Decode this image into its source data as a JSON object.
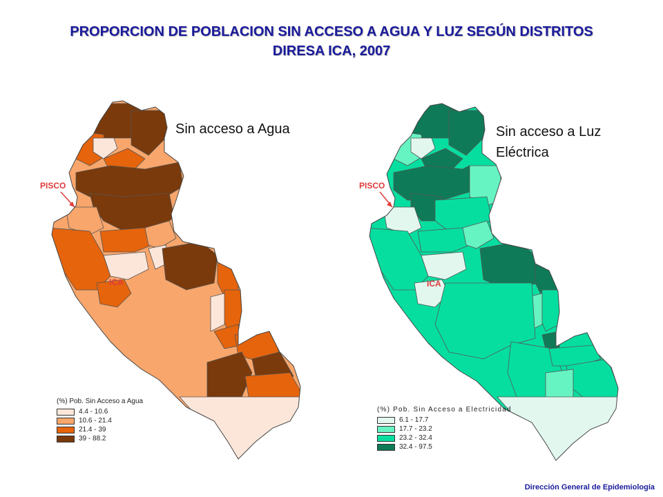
{
  "title": {
    "line1": "PROPORCION DE POBLACION SIN ACCESO A AGUA Y LUZ SEGÚN DISTRITOS",
    "line2": "DIRESA ICA, 2007"
  },
  "maps": {
    "water": {
      "label": "Sin acceso a Agua",
      "city_pisco": "PISCO",
      "city_ica": "ICA",
      "legend": {
        "title": "(%) Pob. Sin Acceso a Agua",
        "classes": [
          {
            "range": "4.4 - 10.6",
            "color": "#fce6da"
          },
          {
            "range": "10.6 - 21.4",
            "color": "#f8a66c"
          },
          {
            "range": "21.4 - 39",
            "color": "#e5640c"
          },
          {
            "range": "39 - 88.2",
            "color": "#7a3a0c"
          }
        ]
      }
    },
    "light": {
      "label_line1": "Sin acceso a Luz",
      "label_line2": "Eléctrica",
      "city_pisco": "PISCO",
      "city_ica": "ICA",
      "legend": {
        "title": "(%) Pob. Sin Acceso a Electricidad",
        "classes": [
          {
            "range": "6.1 - 17.7",
            "color": "#e2f8ef"
          },
          {
            "range": "17.7 - 23.2",
            "color": "#66f4c2"
          },
          {
            "range": "23.2 - 32.4",
            "color": "#06dea0"
          },
          {
            "range": "32.4 - 97.5",
            "color": "#0e7a58"
          }
        ]
      }
    }
  },
  "footer": "Dirección General de Epidemiología"
}
